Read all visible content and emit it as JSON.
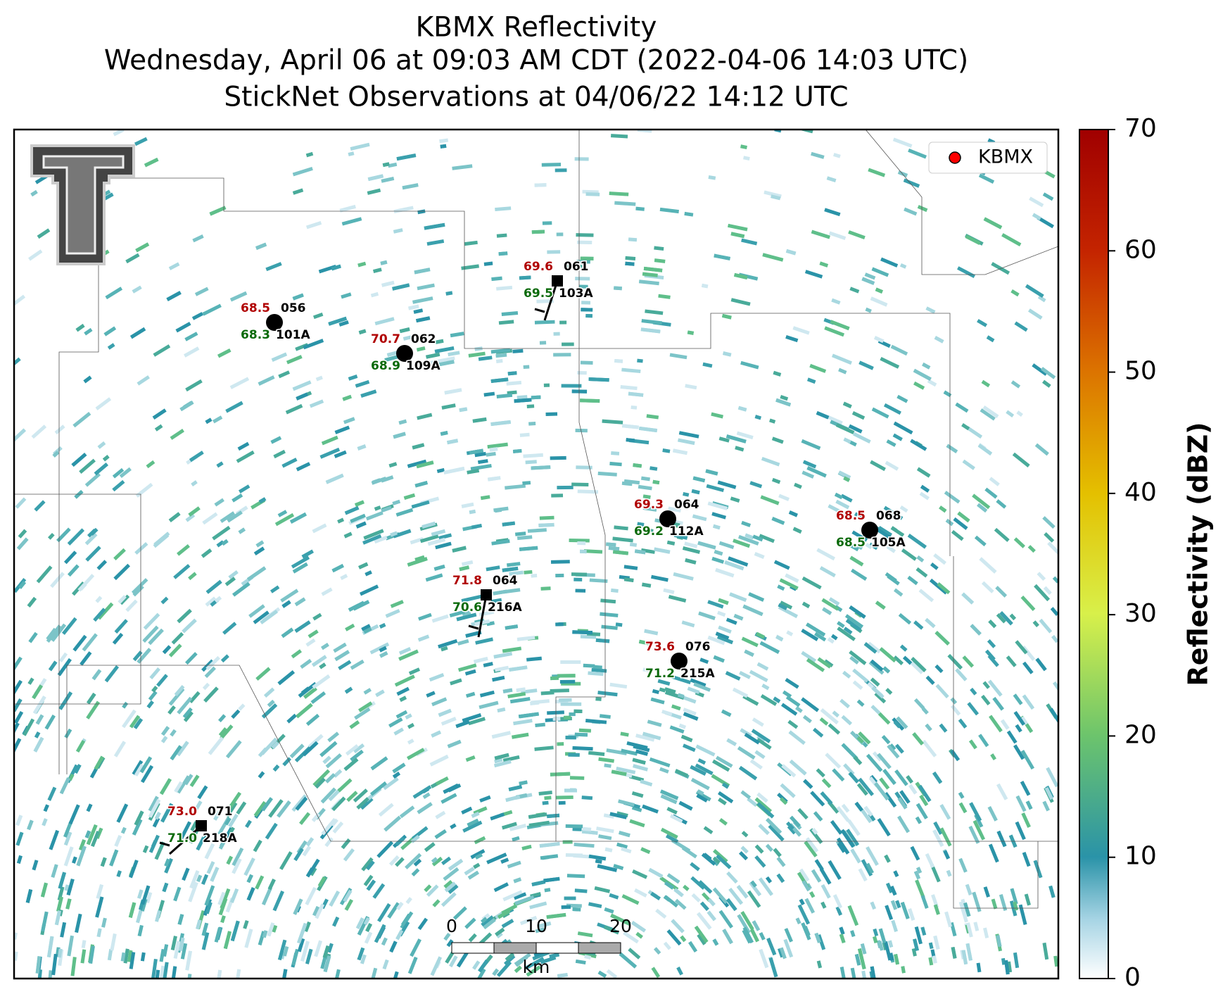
{
  "title": [
    "KBMX Reflectivity",
    "Wednesday, April 06 at 09:03 AM CDT (2022-04-06 14:03 UTC)",
    "StickNet Observations at 04/06/22 14:12 UTC"
  ],
  "legend": {
    "label": "KBMX",
    "color": "#ff0000"
  },
  "colorbar": {
    "label": "Reflectivity (dBZ)",
    "lim": [
      0,
      70
    ],
    "ticks": [
      0,
      10,
      20,
      30,
      40,
      50,
      60,
      70
    ]
  },
  "scale_bar": {
    "ticks": [
      0,
      10,
      20
    ],
    "unit": "km"
  },
  "stations": [
    {
      "id": "101A",
      "temperature": "68.5",
      "dewpoint": "68.3",
      "pressure": "056"
    },
    {
      "id": "109A",
      "temperature": "70.7",
      "dewpoint": "68.9",
      "pressure": "062"
    },
    {
      "id": "103A",
      "temperature": "69.6",
      "dewpoint": "69.5",
      "pressure": "061"
    },
    {
      "id": "112A",
      "temperature": "69.3",
      "dewpoint": "69.2",
      "pressure": "064"
    },
    {
      "id": "105A",
      "temperature": "68.5",
      "dewpoint": "68.5",
      "pressure": "068"
    },
    {
      "id": "216A",
      "temperature": "71.8",
      "dewpoint": "70.6",
      "pressure": "064"
    },
    {
      "id": "215A",
      "temperature": "73.6",
      "dewpoint": "71.2",
      "pressure": "076"
    },
    {
      "id": "218A",
      "temperature": "73.0",
      "dewpoint": "71.0",
      "pressure": "071"
    }
  ]
}
